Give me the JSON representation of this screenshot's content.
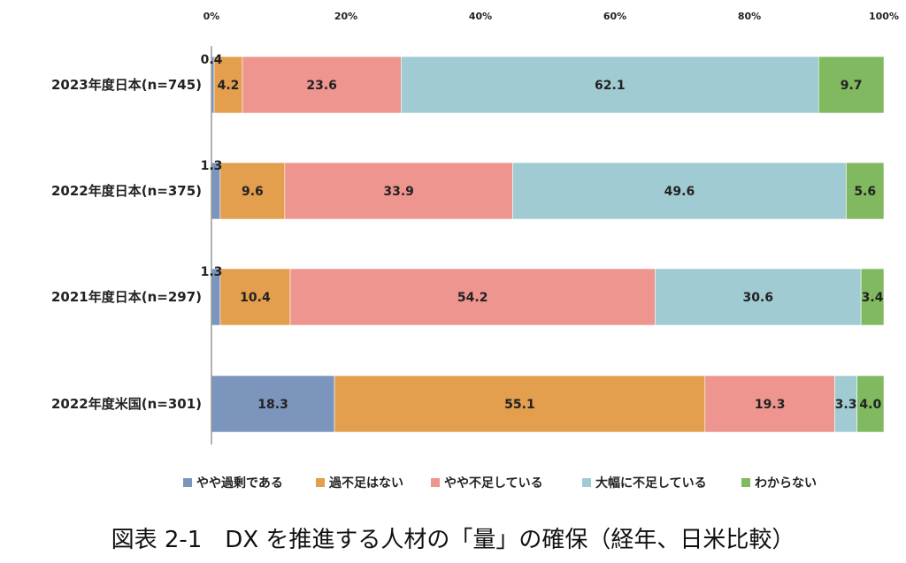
{
  "caption": "図表 2-1　DX を推進する人材の「量」の確保（経年、日米比較）",
  "chart_data": {
    "type": "bar",
    "orientation": "horizontal",
    "stacked": true,
    "percent": true,
    "xlim": [
      0,
      100
    ],
    "xticks": [
      "0%",
      "20%",
      "40%",
      "60%",
      "80%",
      "100%"
    ],
    "xtick_values": [
      0,
      20,
      40,
      60,
      80,
      100
    ],
    "xaxis_position": "top",
    "legend_position": "bottom",
    "categories": [
      "2023年度日本(n=745)",
      "2022年度日本(n=375)",
      "2021年度日本(n=297)",
      "2022年度米国(n=301)"
    ],
    "series": [
      {
        "name": "やや過剰である",
        "color": "#7b95bd",
        "values": [
          0.4,
          1.3,
          1.3,
          18.3
        ],
        "labels": [
          "0.4",
          "1.3",
          "1.3",
          "18.3"
        ]
      },
      {
        "name": "過不足はない",
        "color": "#e39e4e",
        "values": [
          4.2,
          9.6,
          10.4,
          55.1
        ],
        "labels": [
          "4.2",
          "9.6",
          "10.4",
          "55.1"
        ]
      },
      {
        "name": "やや不足している",
        "color": "#ee9590",
        "values": [
          23.6,
          33.9,
          54.2,
          19.3
        ],
        "labels": [
          "23.6",
          "33.9",
          "54.2",
          "19.3"
        ]
      },
      {
        "name": "大幅に不足している",
        "color": "#a0cbd2",
        "values": [
          62.1,
          49.6,
          30.6,
          3.3
        ],
        "labels": [
          "62.1",
          "49.6",
          "30.6",
          "3.3"
        ]
      },
      {
        "name": "わからない",
        "color": "#80b95f",
        "values": [
          9.7,
          5.6,
          3.4,
          4.0
        ],
        "labels": [
          "9.7",
          "5.6",
          "3.4",
          "4.0"
        ]
      }
    ]
  }
}
